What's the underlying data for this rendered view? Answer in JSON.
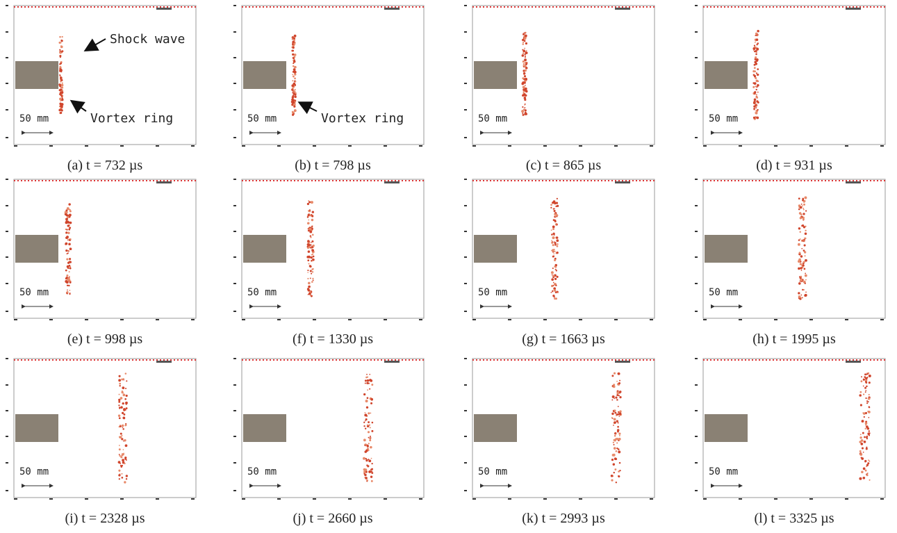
{
  "scale_label": "50 mm",
  "panels": [
    {
      "caption": "(a) t = 732 µs",
      "annotations": [
        "Shock wave",
        "Vortex ring"
      ]
    },
    {
      "caption": "(b) t = 798 µs",
      "annotations": [
        "Vortex ring"
      ]
    },
    {
      "caption": "(c) t = 865 µs"
    },
    {
      "caption": "(d) t = 931 µs"
    },
    {
      "caption": "(e) t = 998 µs"
    },
    {
      "caption": "(f) t = 1330 µs"
    },
    {
      "caption": "(g) t = 1663 µs"
    },
    {
      "caption": "(h) t = 1995 µs"
    },
    {
      "caption": "(i) t = 2328 µs"
    },
    {
      "caption": "(j) t = 2660 µs"
    },
    {
      "caption": "(k) t = 2993 µs"
    },
    {
      "caption": "(l) t = 3325 µs"
    }
  ]
}
